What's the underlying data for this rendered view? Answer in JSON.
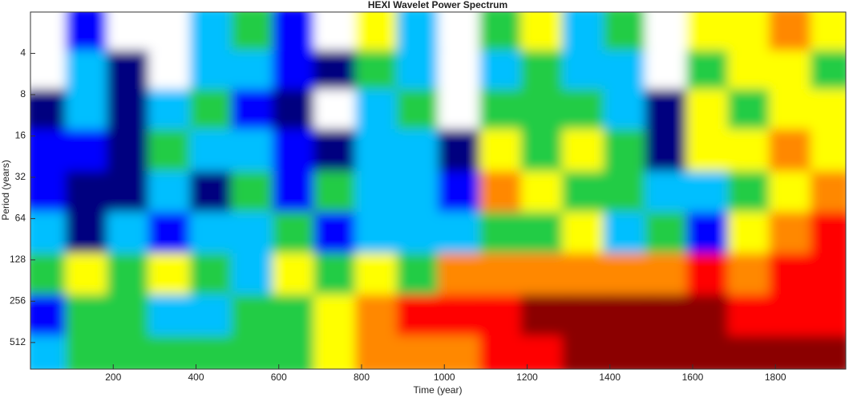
{
  "chart_data": {
    "type": "contour",
    "title": "HEXI Wavelet Power Spectrum",
    "x_label": "Time (year)",
    "y_label": "Period (years)",
    "xlim": [
      0,
      1970
    ],
    "xticks": [
      200,
      400,
      600,
      800,
      1000,
      1200,
      1400,
      1600,
      1800
    ],
    "ylim": [
      2,
      800
    ],
    "yticks": [
      4,
      8,
      16,
      32,
      64,
      128,
      256,
      512
    ],
    "y_log": true,
    "y_reversed": true,
    "x": [
      50,
      150,
      250,
      350,
      450,
      550,
      650,
      750,
      850,
      950,
      1050,
      1150,
      1250,
      1350,
      1450,
      1550,
      1650,
      1750,
      1850,
      1950
    ],
    "y": [
      3,
      6,
      11,
      23,
      45,
      90,
      180,
      360,
      720
    ],
    "level_colors": [
      "#ffffff",
      "#00007f",
      "#0000ff",
      "#00bfff",
      "#22cc44",
      "#ffff00",
      "#ff8800",
      "#ff0000",
      "#8b0000"
    ],
    "z": [
      [
        0,
        2,
        0,
        0,
        3,
        4,
        2,
        0,
        5,
        3,
        0,
        4,
        5,
        3,
        4,
        0,
        5,
        5,
        6,
        5
      ],
      [
        0,
        3,
        1,
        0,
        3,
        3,
        2,
        1,
        4,
        3,
        0,
        3,
        4,
        3,
        3,
        0,
        4,
        5,
        5,
        4
      ],
      [
        1,
        3,
        1,
        3,
        4,
        2,
        1,
        0,
        3,
        4,
        0,
        4,
        4,
        4,
        3,
        1,
        5,
        4,
        5,
        5
      ],
      [
        2,
        2,
        1,
        4,
        3,
        3,
        2,
        1,
        3,
        3,
        1,
        5,
        4,
        5,
        4,
        1,
        5,
        5,
        6,
        5
      ],
      [
        2,
        1,
        1,
        3,
        1,
        4,
        2,
        4,
        3,
        3,
        2,
        6,
        5,
        4,
        4,
        3,
        3,
        4,
        5,
        6
      ],
      [
        3,
        1,
        3,
        2,
        3,
        3,
        4,
        2,
        3,
        3,
        3,
        4,
        4,
        5,
        3,
        4,
        2,
        5,
        6,
        7
      ],
      [
        4,
        5,
        4,
        5,
        4,
        3,
        5,
        4,
        5,
        4,
        6,
        6,
        6,
        6,
        6,
        6,
        7,
        6,
        7,
        7
      ],
      [
        2,
        4,
        4,
        3,
        3,
        4,
        4,
        5,
        6,
        7,
        7,
        7,
        8,
        8,
        8,
        8,
        8,
        7,
        7,
        7
      ],
      [
        3,
        4,
        4,
        4,
        4,
        4,
        4,
        5,
        6,
        6,
        6,
        7,
        7,
        8,
        8,
        8,
        8,
        8,
        8,
        8
      ]
    ]
  }
}
